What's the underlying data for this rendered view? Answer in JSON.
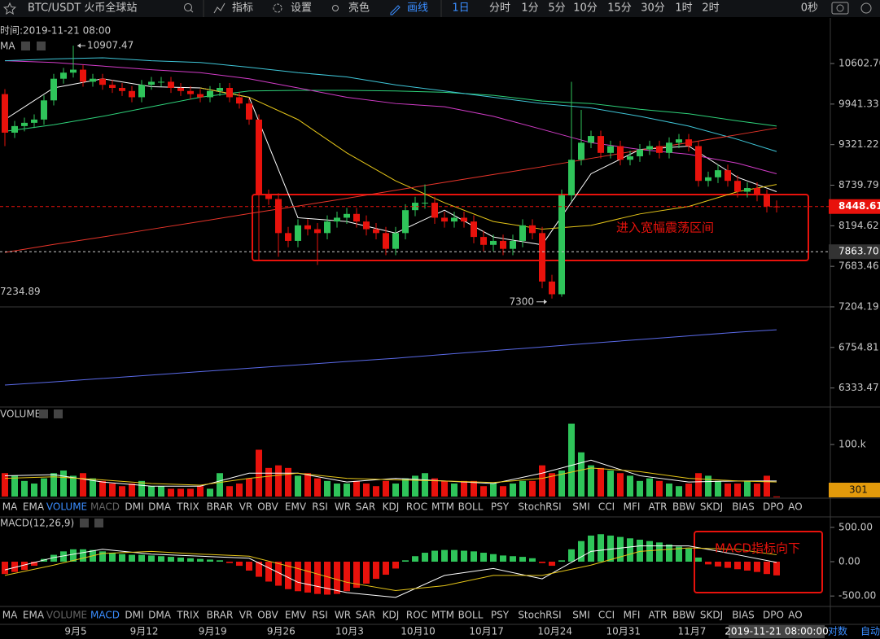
{
  "toolbar": {
    "symbol": "BTC/USDT 火币全球站",
    "buttons": [
      "指标",
      "设置",
      "亮色",
      "画线"
    ],
    "periods": [
      "1日",
      "分时",
      "1分",
      "5分",
      "10分",
      "15分",
      "30分",
      "1时",
      "2时"
    ],
    "countdown": "0秒"
  },
  "info": {
    "time": "时间:2019-11-21 08:00",
    "ma_label": "MA"
  },
  "indicator_tabs": [
    "MA",
    "EMA",
    "VOLUME",
    "MACD",
    "DMI",
    "DMA",
    "TRIX",
    "BRAR",
    "VR",
    "OBV",
    "EMV",
    "RSI",
    "WR",
    "SAR",
    "KDJ",
    "ROC",
    "MTM",
    "BOLL",
    "PSY",
    "StochRSI",
    "SMI",
    "CCI",
    "MFI",
    "ATR",
    "BBW",
    "SKDJ",
    "BIAS",
    "DPO",
    "AO"
  ],
  "x_axis": {
    "date_labels": [
      "9月5",
      "9月12",
      "9月19",
      "9月26",
      "10月3",
      "10月10",
      "10月17",
      "10月24",
      "10月31",
      "11月7"
    ],
    "cursor_label": "2019-11-21 08:00:00",
    "buttons": [
      "对数",
      "自动"
    ]
  },
  "chart_data": [
    {
      "type": "candlestick",
      "log_scale": true,
      "grid": false,
      "colors": {
        "up": "#2fc45a",
        "down": "#e8120c"
      },
      "open": [
        10100,
        9500,
        9600,
        9650,
        9700,
        10000,
        10350,
        10450,
        10500,
        10300,
        10350,
        10250,
        10200,
        10150,
        10050,
        10250,
        10300,
        10300,
        10200,
        10150,
        10100,
        10050,
        10150,
        10200,
        10050,
        9950,
        9700,
        8600,
        8550,
        8100,
        8000,
        8200,
        8150,
        8100,
        8250,
        8300,
        8350,
        8250,
        8150,
        8100,
        7900,
        8100,
        8400,
        8500,
        8500,
        8300,
        8250,
        8300,
        8250,
        8050,
        7950,
        8000,
        7900,
        8000,
        8200,
        8100,
        7500,
        7350,
        8600,
        9100,
        9350,
        9450,
        9200,
        9300,
        9100,
        9150,
        9250,
        9300,
        9200,
        9350,
        9400,
        9300,
        8800,
        8850,
        8950,
        8800,
        8650,
        8700,
        8600,
        8450
      ],
      "high": [
        10180,
        9680,
        9730,
        9780,
        10080,
        10430,
        10530,
        10907.47,
        10580,
        10430,
        10430,
        10330,
        10280,
        10230,
        10330,
        10380,
        10380,
        10380,
        10280,
        10230,
        10180,
        10230,
        10280,
        10280,
        10130,
        10030,
        9780,
        8680,
        8630,
        8180,
        8280,
        8280,
        8230,
        8330,
        8380,
        8430,
        8430,
        8330,
        8230,
        8180,
        8180,
        8480,
        8580,
        8750,
        8580,
        8380,
        8380,
        8380,
        8330,
        8130,
        8080,
        8080,
        8080,
        8280,
        8280,
        8180,
        7580,
        8680,
        10300,
        9850,
        9530,
        9530,
        9380,
        9380,
        9230,
        9330,
        9380,
        9380,
        9430,
        9480,
        9480,
        9380,
        8930,
        9030,
        9030,
        8880,
        8780,
        8780,
        8680,
        8530
      ],
      "low": [
        9300,
        9420,
        9520,
        9570,
        9620,
        9920,
        10270,
        10370,
        10220,
        10220,
        10170,
        10120,
        10070,
        9970,
        9970,
        10170,
        10220,
        10120,
        10070,
        10020,
        9970,
        9970,
        10070,
        9970,
        9870,
        9620,
        7750,
        8470,
        7800,
        7920,
        7920,
        8070,
        7700,
        8020,
        8170,
        8220,
        8170,
        8070,
        8020,
        7820,
        7820,
        8020,
        8320,
        8420,
        8220,
        8170,
        8170,
        8170,
        7970,
        7870,
        7870,
        7820,
        7820,
        7920,
        8020,
        7420,
        7300,
        7320,
        8520,
        9020,
        9270,
        9120,
        9120,
        9020,
        9020,
        9070,
        9170,
        9120,
        9120,
        9270,
        9220,
        8720,
        8720,
        8770,
        8720,
        8570,
        8570,
        8520,
        8370,
        8370
      ],
      "close": [
        9500,
        9600,
        9650,
        9700,
        10000,
        10350,
        10450,
        10500,
        10300,
        10350,
        10250,
        10200,
        10150,
        10050,
        10250,
        10300,
        10300,
        10200,
        10150,
        10100,
        10050,
        10150,
        10200,
        10050,
        9950,
        9700,
        8600,
        8550,
        8100,
        8000,
        8200,
        8150,
        8100,
        8250,
        8300,
        8350,
        8250,
        8150,
        8100,
        7900,
        8100,
        8400,
        8500,
        8500,
        8300,
        8250,
        8300,
        8250,
        8050,
        7950,
        8000,
        7900,
        8000,
        8200,
        8100,
        7500,
        7350,
        8600,
        9100,
        9350,
        9450,
        9200,
        9300,
        9100,
        9150,
        9250,
        9300,
        9200,
        9350,
        9400,
        9300,
        8800,
        8850,
        8950,
        8800,
        8650,
        8700,
        8600,
        8450,
        8448.61
      ],
      "series_x": [
        0,
        5,
        10,
        15,
        20,
        25,
        30,
        35,
        40,
        45,
        50,
        55,
        60,
        65,
        70,
        75,
        79
      ],
      "series": [
        {
          "color": "#ffffff",
          "values": [
            9700,
            10200,
            10350,
            10220,
            10200,
            10050,
            8300,
            8250,
            8100,
            8400,
            8050,
            7950,
            8900,
            9250,
            9300,
            8850,
            8650
          ]
        },
        {
          "color": "#e6c619",
          "values": [
            null,
            null,
            null,
            null,
            10200,
            10050,
            9700,
            9200,
            8800,
            8500,
            8250,
            8150,
            8200,
            8350,
            8450,
            8650,
            8750
          ]
        },
        {
          "color": "#2ed27a",
          "values": [
            9520,
            9620,
            9750,
            9900,
            10050,
            10150,
            10160,
            10160,
            10150,
            10130,
            10080,
            9990,
            9950,
            9860,
            9790,
            9680,
            9600
          ]
        },
        {
          "color": "#d23cc8",
          "values": [
            10650,
            10620,
            10560,
            10500,
            10450,
            10350,
            10200,
            10050,
            9950,
            9900,
            9750,
            9550,
            9350,
            9250,
            9180,
            9050,
            8900
          ]
        },
        {
          "color": "#3fc6d8",
          "values": [
            10650,
            10680,
            10700,
            10650,
            10620,
            10540,
            10450,
            10380,
            10250,
            10150,
            10050,
            9950,
            9880,
            9750,
            9600,
            9400,
            9220
          ]
        },
        {
          "color": "#e8352a",
          "values": [
            7855,
            7955,
            8050,
            8150,
            8250,
            8355,
            8455,
            8560,
            8670,
            8780,
            8890,
            9000,
            9120,
            9240,
            9350,
            9470,
            9570
          ]
        },
        {
          "color": "#5a6ae8",
          "values": [
            6363,
            6395,
            6430,
            6465,
            6500,
            6535,
            6570,
            6605,
            6640,
            6680,
            6720,
            6760,
            6800,
            6840,
            6880,
            6920,
            6947
          ]
        }
      ],
      "ylim": [
        6145,
        11282
      ],
      "yticks": [
        {
          "value": 10602.7,
          "label": "10602.70"
        },
        9941.33,
        9321.22,
        8739.79,
        8194.62,
        7683.46,
        7204.19,
        6754.81,
        6333.47
      ],
      "current_price": 8448.61,
      "reference_price": {
        "value": 7863.7,
        "label": "7863.70"
      },
      "max_marker": 10907.47,
      "low_marker": 7300,
      "panel_low": 7234.89,
      "annotation": "进入宽幅震荡区间"
    },
    {
      "type": "bar",
      "title": "VOLUME",
      "values": [
        45000,
        40000,
        30000,
        25000,
        35000,
        45000,
        50000,
        40000,
        45000,
        35000,
        30000,
        25000,
        20000,
        25000,
        30000,
        20000,
        20000,
        15000,
        15000,
        15000,
        20000,
        15000,
        45000,
        20000,
        25000,
        35000,
        90000,
        55000,
        60000,
        55000,
        40000,
        45000,
        35000,
        30000,
        25000,
        25000,
        30000,
        25000,
        20000,
        30000,
        25000,
        35000,
        40000,
        45000,
        35000,
        30000,
        25000,
        30000,
        30000,
        20000,
        25000,
        20000,
        25000,
        30000,
        30000,
        60000,
        45000,
        50000,
        140000,
        85000,
        60000,
        55000,
        50000,
        45000,
        40000,
        30000,
        35000,
        30000,
        25000,
        20000,
        25000,
        45000,
        40000,
        30000,
        25000,
        25000,
        30000,
        25000,
        40000,
        301
      ],
      "series_x": [
        0,
        5,
        10,
        15,
        20,
        25,
        30,
        35,
        40,
        45,
        50,
        55,
        60,
        65,
        70,
        75,
        79
      ],
      "series": [
        {
          "color": "#ffffff",
          "values": [
            40000,
            42000,
            28000,
            20000,
            20000,
            45000,
            45000,
            28000,
            35000,
            30000,
            25000,
            45000,
            70000,
            40000,
            28000,
            30000,
            30000
          ]
        },
        {
          "color": "#e6c619",
          "values": [
            35000,
            38000,
            32000,
            25000,
            22000,
            35000,
            45000,
            35000,
            32000,
            30000,
            27000,
            35000,
            55000,
            48000,
            35000,
            30000,
            28000
          ]
        }
      ],
      "ylim": [
        0,
        169000
      ],
      "yticks": [
        {
          "value": 100000,
          "label": "100.k"
        }
      ]
    },
    {
      "type": "bar",
      "title": "MACD(12,26,9)",
      "values": [
        -180,
        -150,
        -120,
        -60,
        40,
        100,
        150,
        180,
        180,
        170,
        150,
        130,
        110,
        100,
        100,
        90,
        80,
        70,
        60,
        50,
        40,
        30,
        20,
        -20,
        -60,
        -130,
        -220,
        -290,
        -350,
        -400,
        -430,
        -450,
        -470,
        -480,
        -470,
        -430,
        -380,
        -320,
        -250,
        -190,
        -100,
        20,
        80,
        130,
        160,
        170,
        170,
        160,
        150,
        130,
        110,
        90,
        80,
        70,
        50,
        -20,
        -60,
        20,
        180,
        300,
        380,
        400,
        380,
        360,
        340,
        320,
        300,
        280,
        250,
        220,
        190,
        60,
        -40,
        -70,
        -90,
        -110,
        -130,
        -150,
        -180,
        -200
      ],
      "colors": {
        "up": "#2fc45a",
        "down": "#e8120c"
      },
      "series_x": [
        0,
        5,
        10,
        15,
        20,
        25,
        30,
        35,
        40,
        45,
        50,
        55,
        60,
        65,
        70,
        75,
        79
      ],
      "series": [
        {
          "color": "#ffffff",
          "values": [
            -120,
            60,
            180,
            110,
            80,
            50,
            -300,
            -450,
            -520,
            -200,
            -100,
            -250,
            150,
            230,
            230,
            100,
            -10
          ]
        },
        {
          "color": "#e6c619",
          "values": [
            -200,
            -50,
            120,
            150,
            110,
            80,
            -100,
            -300,
            -420,
            -350,
            -200,
            -200,
            -50,
            150,
            200,
            180,
            100
          ]
        }
      ],
      "ylim": [
        -640,
        640
      ],
      "yticks": [
        {
          "value": 500,
          "label": "500.00"
        },
        {
          "value": 0,
          "label": "0.00"
        },
        {
          "value": -500,
          "label": "-500.00"
        }
      ],
      "annotation": "MACD指标向下"
    }
  ]
}
